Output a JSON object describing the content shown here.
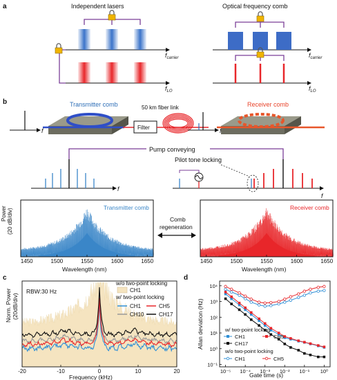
{
  "panels": {
    "a": {
      "letter": "a",
      "left_title": "Independent lasers",
      "right_title": "Optical frequency comb",
      "f": "f",
      "carrier": "carrier",
      "lo": "LO"
    },
    "b": {
      "letter": "b",
      "transmitter_comb": "Transmitter comb",
      "receiver_comb": "Receiver comb",
      "fiber_link": "50 km fiber link",
      "filter": "Filter",
      "pump_conveying": "Pump conveying",
      "pilot_tone_locking": "Pilot tone locking",
      "f": "f",
      "comb_regeneration_1": "Comb",
      "comb_regeneration_2": "regeneration",
      "power_label_1": "Power",
      "power_label_2": "(20 dB/div)",
      "wavelength_label": "Wavelength (nm)",
      "x_ticks": [
        "1450",
        "1500",
        "1550",
        "1600",
        "1650"
      ],
      "transmitter_color": "#3a86c8",
      "receiver_color": "#e8262a"
    },
    "c": {
      "letter": "c",
      "rbw": "RBW:30 Hz",
      "ylabel_1": "Norm. Power",
      "ylabel_2": "(20dB/div)",
      "xlabel": "Frequency (kHz)",
      "x_ticks": [
        "-20",
        "-10",
        "0",
        "10",
        "20"
      ],
      "legend_wo": "w/o two-point locking",
      "legend_ch1_fill": "CH1",
      "legend_w": "w/ two-point locking",
      "ch1": "CH1",
      "ch5": "CH5",
      "ch10": "CH10",
      "ch17": "CH17"
    },
    "d": {
      "letter": "d",
      "ylabel": "Allan deviation (Hz)",
      "xlabel": "Gate time (s)",
      "y_ticks": [
        "10⁻¹",
        "10⁰",
        "10¹",
        "10²",
        "10³",
        "10⁴"
      ],
      "x_ticks": [
        "10⁻⁵",
        "10⁻⁴",
        "10⁻³",
        "10⁻²",
        "10⁻¹",
        "10⁰"
      ],
      "legend_w": "w/ two-point locking",
      "legend_wo": "w/o two-point locking",
      "ch1": "CH1",
      "ch5": "CH5",
      "ch17": "CH17"
    }
  },
  "chart_data": [
    {
      "type": "area",
      "panel": "b-left",
      "xlabel": "Wavelength (nm)",
      "ylabel": "Power (20 dB/div)",
      "legend": "Transmitter comb",
      "xlim": [
        1440,
        1660
      ],
      "x_ticks": [
        1450,
        1500,
        1550,
        1600,
        1650
      ],
      "envelope_peak_nm": 1550
    },
    {
      "type": "area",
      "panel": "b-right",
      "xlabel": "Wavelength (nm)",
      "ylabel": "Power (20 dB/div)",
      "legend": "Receiver comb",
      "xlim": [
        1440,
        1660
      ],
      "x_ticks": [
        1450,
        1500,
        1550,
        1600,
        1650
      ],
      "envelope_peak_nm": 1550
    },
    {
      "type": "line",
      "panel": "c",
      "xlabel": "Frequency (kHz)",
      "ylabel": "Norm. Power (20dB/div)",
      "xlim": [
        -20,
        20
      ],
      "series": [
        {
          "name": "CH1 (w/o two-point locking)",
          "color": "#f5e4c0"
        },
        {
          "name": "CH1",
          "color": "#2f8fd6"
        },
        {
          "name": "CH5",
          "color": "#e8262a"
        },
        {
          "name": "CH10",
          "color": "#999999"
        },
        {
          "name": "CH17",
          "color": "#111111"
        }
      ]
    },
    {
      "type": "line",
      "panel": "d",
      "xlabel": "Gate time (s)",
      "ylabel": "Allan deviation (Hz)",
      "log_x": true,
      "log_y": true,
      "xlim": [
        5e-06,
        2
      ],
      "ylim": [
        0.07,
        20000
      ],
      "x": [
        1e-05,
        2e-05,
        5e-05,
        0.0001,
        0.0002,
        0.0005,
        0.001,
        0.002,
        0.005,
        0.01,
        0.02,
        0.05,
        0.1,
        0.2,
        0.5,
        1
      ],
      "series": [
        {
          "name": "CH1",
          "group": "w/ two-point locking",
          "color": "#2f8fd6",
          "marker": "square",
          "values": [
            3000,
            1500,
            600,
            300,
            150,
            60,
            30,
            15,
            8,
            5,
            4,
            3,
            2.5,
            2,
            1.5,
            1.2
          ]
        },
        {
          "name": "CH5",
          "group": "w/ two-point locking",
          "color": "#e8262a",
          "marker": "square",
          "values": [
            4000,
            2000,
            800,
            400,
            200,
            80,
            40,
            20,
            10,
            6,
            4.5,
            3.2,
            2.6,
            2.1,
            1.6,
            1.3
          ]
        },
        {
          "name": "CH17",
          "group": "w/ two-point locking",
          "color": "#111111",
          "marker": "square",
          "values": [
            1500,
            700,
            300,
            150,
            70,
            30,
            15,
            8,
            4,
            2,
            1.2,
            0.8,
            0.5,
            0.4,
            0.3,
            0.3
          ]
        },
        {
          "name": "CH1",
          "group": "w/o two-point locking",
          "color": "#2f8fd6",
          "marker": "open-circle",
          "values": [
            6000,
            4000,
            2500,
            1500,
            900,
            600,
            500,
            550,
            700,
            900,
            1200,
            1800,
            2500,
            3500,
            4500,
            5000
          ]
        },
        {
          "name": "CH5",
          "group": "w/o two-point locking",
          "color": "#e8262a",
          "marker": "open-circle",
          "values": [
            9000,
            6000,
            3500,
            2200,
            1400,
            900,
            800,
            850,
            1000,
            1400,
            2000,
            3000,
            4500,
            6000,
            8000,
            9000
          ]
        }
      ]
    }
  ]
}
